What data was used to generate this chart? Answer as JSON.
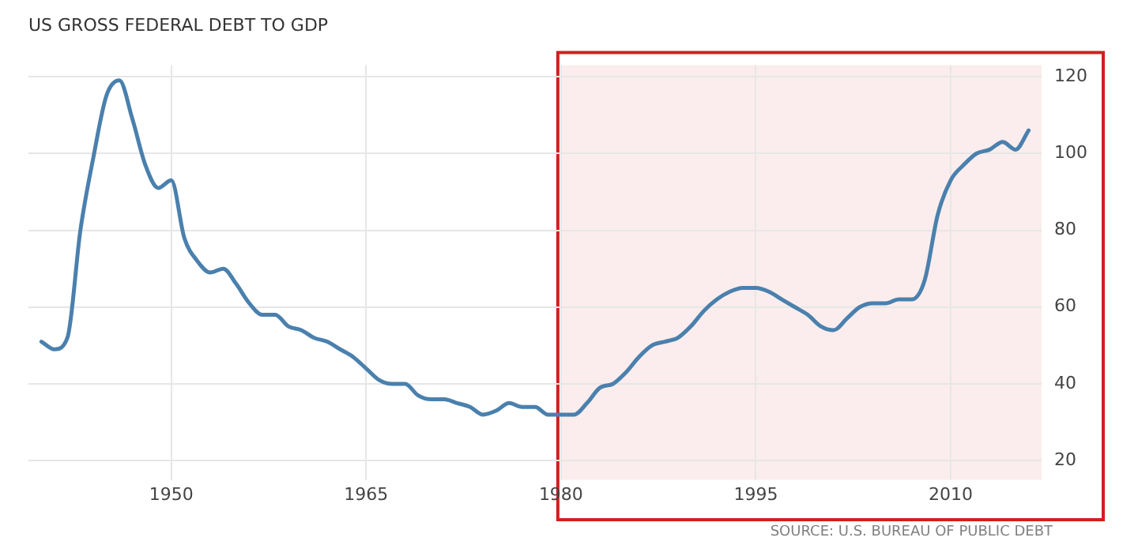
{
  "chart_data": {
    "type": "line",
    "title": "US GROSS FEDERAL DEBT TO GDP",
    "x": [
      1940,
      1941,
      1942,
      1943,
      1944,
      1945,
      1946,
      1947,
      1948,
      1949,
      1950,
      1951,
      1952,
      1953,
      1954,
      1955,
      1956,
      1957,
      1958,
      1959,
      1960,
      1961,
      1962,
      1963,
      1964,
      1965,
      1966,
      1967,
      1968,
      1969,
      1970,
      1971,
      1972,
      1973,
      1974,
      1975,
      1976,
      1977,
      1978,
      1979,
      1980,
      1981,
      1982,
      1983,
      1984,
      1985,
      1986,
      1987,
      1988,
      1989,
      1990,
      1991,
      1992,
      1993,
      1994,
      1995,
      1996,
      1997,
      1998,
      1999,
      2000,
      2001,
      2002,
      2003,
      2004,
      2005,
      2006,
      2007,
      2008,
      2009,
      2010,
      2011,
      2012,
      2013,
      2014,
      2015,
      2016
    ],
    "series": [
      {
        "color": "#4a80ad",
        "values": [
          51,
          49,
          52,
          80,
          99,
          115,
          119,
          109,
          97,
          91,
          93,
          78,
          72,
          69,
          70,
          66,
          61,
          58,
          58,
          55,
          54,
          52,
          51,
          49,
          47,
          44,
          41,
          40,
          40,
          37,
          36,
          36,
          35,
          34,
          32,
          33,
          35,
          34,
          34,
          32,
          32,
          32,
          35,
          39,
          40,
          43,
          47,
          50,
          51,
          52,
          55,
          59,
          62,
          64,
          65,
          65,
          64,
          62,
          60,
          58,
          55,
          54,
          57,
          60,
          61,
          61,
          62,
          62,
          67,
          84,
          93,
          97,
          100,
          101,
          103,
          101,
          106
        ]
      }
    ],
    "xlim": [
      1939,
      2017
    ],
    "xticks": [
      1950,
      1965,
      1980,
      1995,
      2010
    ],
    "ylim": [
      15,
      123
    ],
    "yticks": [
      20,
      40,
      60,
      80,
      100,
      120
    ],
    "grid": true,
    "legend": false,
    "marker": "none",
    "line_style": "solid",
    "bands": [
      {
        "axis": "x",
        "from": 1980,
        "to": 2017,
        "color": "#d11f1f"
      }
    ],
    "annotations": [
      "SOURCE: U.S. BUREAU OF PUBLIC DEBT"
    ]
  }
}
